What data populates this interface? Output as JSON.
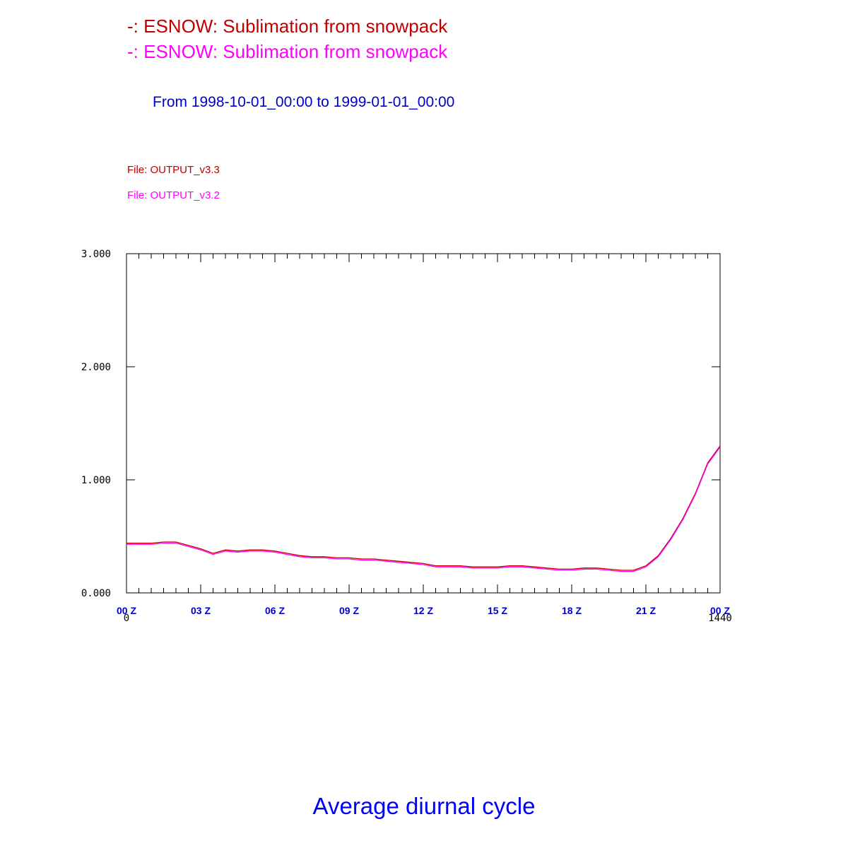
{
  "header": {
    "lines": [
      {
        "text": "-: ESNOW: Sublimation from snowpack",
        "color": "#c00000"
      },
      {
        "text": "-: ESNOW: Sublimation from snowpack",
        "color": "#ff00ff"
      }
    ],
    "range": "From 1998-10-01_00:00 to 1999-01-01_00:00",
    "range_color": "#0000cc",
    "files": [
      {
        "text": "File: OUTPUT_v3.3",
        "color": "#c00000"
      },
      {
        "text": "File: OUTPUT_v3.2",
        "color": "#ff00ff"
      }
    ]
  },
  "footer": {
    "title": "Average diurnal cycle",
    "color": "#0000ff"
  },
  "chart_data": {
    "type": "line",
    "x": [
      0,
      30,
      60,
      90,
      120,
      150,
      180,
      210,
      240,
      270,
      300,
      330,
      360,
      390,
      420,
      450,
      480,
      510,
      540,
      570,
      600,
      630,
      660,
      690,
      720,
      750,
      780,
      810,
      840,
      870,
      900,
      930,
      960,
      990,
      1020,
      1050,
      1080,
      1110,
      1140,
      1170,
      1200,
      1230,
      1260,
      1290,
      1320,
      1350,
      1380,
      1410,
      1440
    ],
    "series": [
      {
        "color": "#c00000",
        "values": [
          0.44,
          0.44,
          0.44,
          0.45,
          0.45,
          0.42,
          0.39,
          0.35,
          0.38,
          0.37,
          0.38,
          0.38,
          0.37,
          0.35,
          0.33,
          0.32,
          0.32,
          0.31,
          0.31,
          0.3,
          0.3,
          0.29,
          0.28,
          0.27,
          0.26,
          0.24,
          0.24,
          0.24,
          0.23,
          0.23,
          0.23,
          0.24,
          0.24,
          0.23,
          0.22,
          0.21,
          0.21,
          0.22,
          0.22,
          0.21,
          0.2,
          0.2,
          0.24,
          0.33,
          0.48,
          0.66,
          0.88,
          1.15,
          1.3
        ]
      },
      {
        "color": "#ff00ff",
        "values": [
          0.43,
          0.43,
          0.43,
          0.44,
          0.44,
          0.41,
          0.38,
          0.34,
          0.37,
          0.36,
          0.37,
          0.37,
          0.36,
          0.34,
          0.32,
          0.31,
          0.31,
          0.3,
          0.3,
          0.29,
          0.29,
          0.28,
          0.27,
          0.26,
          0.25,
          0.23,
          0.23,
          0.23,
          0.22,
          0.22,
          0.22,
          0.23,
          0.23,
          0.22,
          0.21,
          0.2,
          0.2,
          0.21,
          0.21,
          0.2,
          0.19,
          0.19,
          0.23,
          0.32,
          0.47,
          0.65,
          0.87,
          1.14,
          1.29
        ]
      }
    ],
    "x_ticks": [
      0,
      180,
      360,
      540,
      720,
      900,
      1080,
      1260,
      1440
    ],
    "x_tick_labels": [
      "00 Z",
      "03 Z",
      "06 Z",
      "09 Z",
      "12 Z",
      "15 Z",
      "18 Z",
      "21 Z",
      "00 Z"
    ],
    "x_end_labels": [
      "0",
      "1440"
    ],
    "xlim": [
      0,
      1440
    ],
    "y_ticks": [
      0,
      1,
      2,
      3
    ],
    "y_tick_labels": [
      "0.000",
      "1.000",
      "2.000",
      "3.000"
    ],
    "ylim": [
      0,
      3
    ],
    "tick_label_color": "#0000cc",
    "grid": false
  }
}
